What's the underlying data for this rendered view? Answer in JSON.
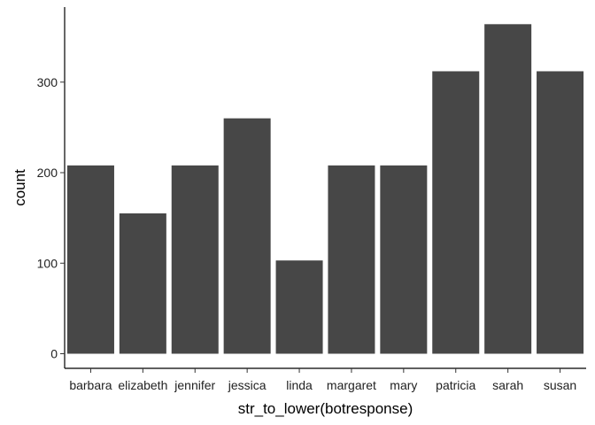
{
  "chart_data": {
    "type": "bar",
    "xlabel": "str_to_lower(botresponse)",
    "ylabel": "count",
    "categories": [
      "barbara",
      "elizabeth",
      "jennifer",
      "jessica",
      "linda",
      "margaret",
      "mary",
      "patricia",
      "sarah",
      "susan"
    ],
    "values": [
      208,
      155,
      208,
      260,
      103,
      208,
      208,
      312,
      364,
      312
    ],
    "yticks": [
      0,
      100,
      200,
      300
    ],
    "ylim": [
      0,
      382
    ],
    "grid": false,
    "legend": "none",
    "bar_color": "#474747"
  }
}
